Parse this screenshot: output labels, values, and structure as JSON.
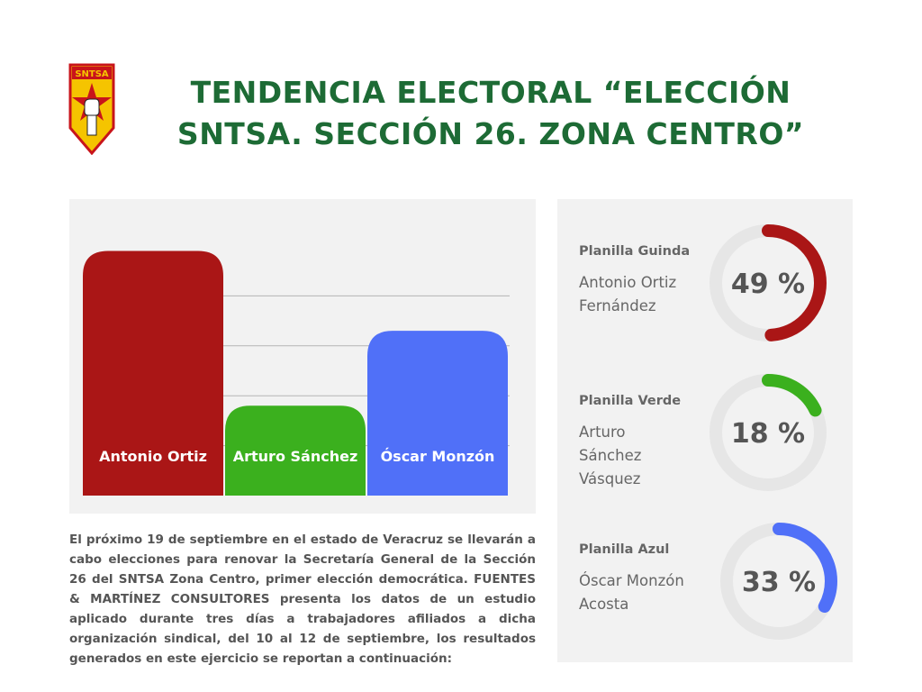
{
  "header": {
    "logo_text": "SNTSA",
    "title_line1": "TENDENCIA ELECTORAL “ELECCIÓN",
    "title_line2": "SNTSA. SECCIÓN 26. ZONA CENTRO”"
  },
  "chart_data": {
    "type": "bar",
    "categories": [
      "Antonio Ortiz",
      "Arturo Sánchez",
      "Óscar Monzón"
    ],
    "values": [
      49,
      18,
      33
    ],
    "colors": [
      "#aa1616",
      "#3bb01e",
      "#5070f8"
    ],
    "ylim": [
      0,
      50
    ],
    "grid": true
  },
  "description": "El próximo 19 de septiembre en el estado de Veracruz se llevarán a cabo elecciones para renovar la Secretaría General de la Sección 26 del SNTSA Zona Centro, primer elección democrática. FUENTES & MARTÍNEZ CONSULTORES presenta los datos de un estudio aplicado durante tres días a trabajadores afiliados a dicha organización sindical, del 10 al 12 de septiembre, los resultados generados en este ejercicio se reportan a continuación:",
  "results": [
    {
      "planilla": "Planilla Guinda",
      "candidate_lines": [
        "Antonio Ortiz",
        "Fernández"
      ],
      "percent": 49,
      "percent_label": "49 %",
      "color": "#aa1616"
    },
    {
      "planilla": "Planilla Verde",
      "candidate_lines": [
        "Arturo",
        "Sánchez",
        "Vásquez"
      ],
      "percent": 18,
      "percent_label": "18 %",
      "color": "#3bb01e"
    },
    {
      "planilla": "Planilla Azul",
      "candidate_lines": [
        "Óscar Monzón",
        "Acosta"
      ],
      "percent": 33,
      "percent_label": "33 %",
      "color": "#5070f8"
    }
  ]
}
